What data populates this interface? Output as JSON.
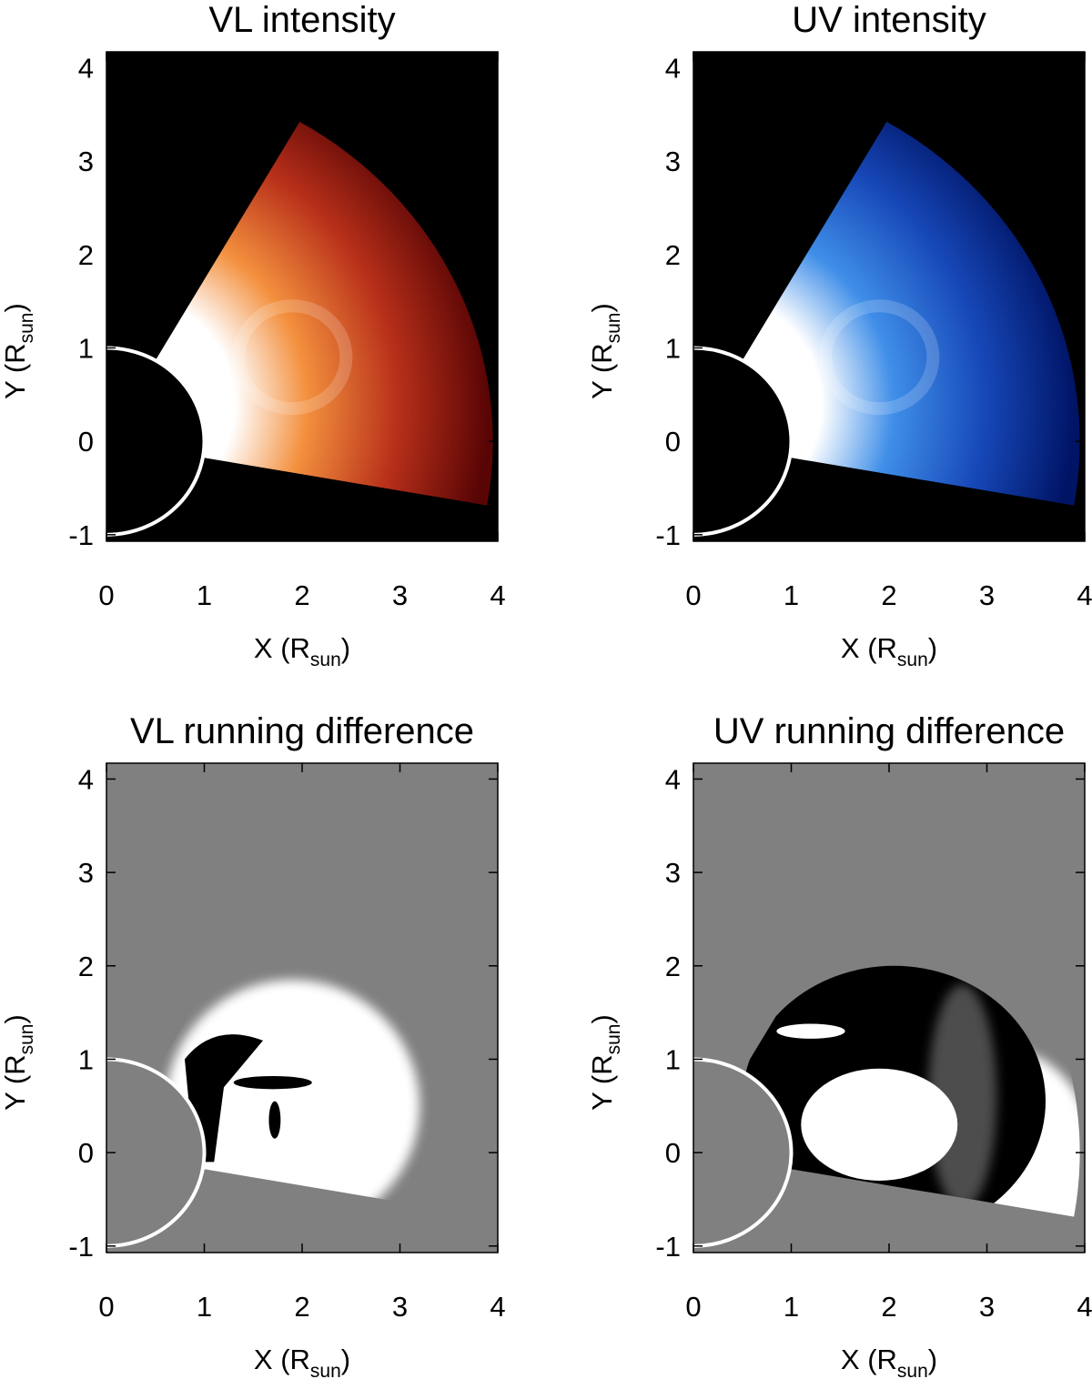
{
  "chart_data": [
    {
      "type": "image",
      "title": "VL intensity",
      "xlabel": [
        "X (R",
        "sun",
        ")"
      ],
      "ylabel": [
        "Y (R",
        "sun",
        ")"
      ],
      "xlim": [
        0,
        4
      ],
      "ylim": [
        -1.07,
        4.17
      ],
      "xticks": [
        0,
        1,
        2,
        3,
        4
      ],
      "yticks": [
        -1,
        0,
        1,
        2,
        3,
        4
      ],
      "colormap": [
        "#ffffff",
        "#f3903e",
        "#b8301a",
        "#5a0505"
      ]
    },
    {
      "type": "image",
      "title": "UV intensity",
      "xlabel": [
        "X (R",
        "sun",
        ")"
      ],
      "ylabel": [
        "Y (R",
        "sun",
        ")"
      ],
      "xlim": [
        0,
        4
      ],
      "ylim": [
        -1.07,
        4.17
      ],
      "xticks": [
        0,
        1,
        2,
        3,
        4
      ],
      "yticks": [
        -1,
        0,
        1,
        2,
        3,
        4
      ],
      "colormap": [
        "#ffffff",
        "#3f8ee8",
        "#1748b8",
        "#001466"
      ]
    },
    {
      "type": "difference-image",
      "title": "VL running difference",
      "xlabel": [
        "X (R",
        "sun",
        ")"
      ],
      "ylabel": [
        "Y (R",
        "sun",
        ")"
      ],
      "xlim": [
        0,
        4
      ],
      "ylim": [
        -1.07,
        4.17
      ],
      "xticks": [
        0,
        1,
        2,
        3,
        4
      ],
      "yticks": [
        -1,
        0,
        1,
        2,
        3,
        4
      ],
      "colormap": [
        "#000000",
        "#808080",
        "#ffffff"
      ]
    },
    {
      "type": "difference-image",
      "title": "UV running difference",
      "xlabel": [
        "X (R",
        "sun",
        ")"
      ],
      "ylabel": [
        "Y (R",
        "sun",
        ")"
      ],
      "xlim": [
        0,
        4
      ],
      "ylim": [
        -1.07,
        4.17
      ],
      "xticks": [
        0,
        1,
        2,
        3,
        4
      ],
      "yticks": [
        -1,
        0,
        1,
        2,
        3,
        4
      ],
      "colormap": [
        "#000000",
        "#808080",
        "#ffffff"
      ]
    }
  ]
}
